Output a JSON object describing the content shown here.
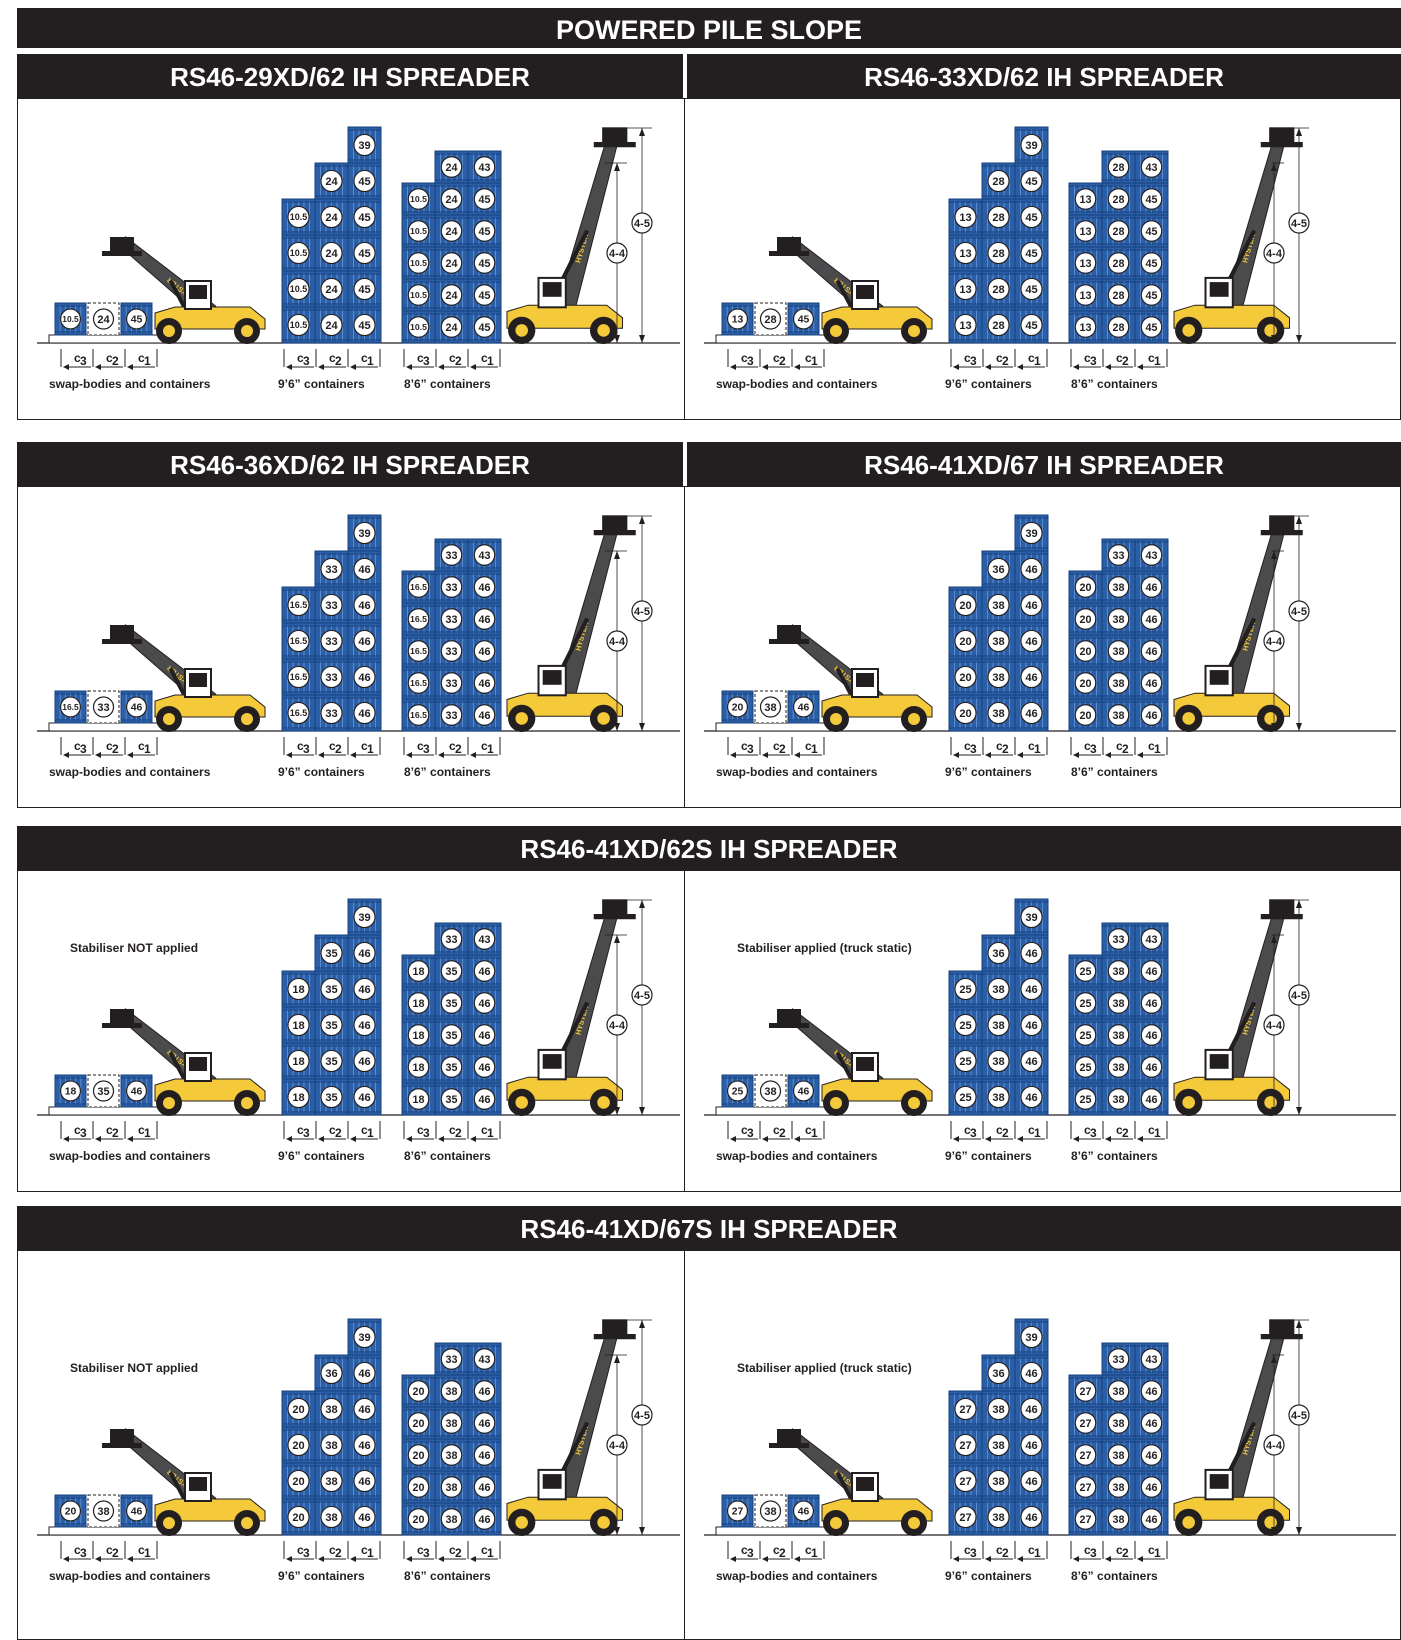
{
  "title": "POWERED PILE SLOPE",
  "colors": {
    "container": "#2a5fa8",
    "container_dark": "#16407d",
    "truck": "#f4c93a",
    "bar": "#231f20",
    "boom": "#4b4b4d"
  },
  "brand": "HYSTER",
  "sections": [
    {
      "id": "s1",
      "panels": [
        {
          "title": "RS46-29XD/62 IH SPREADER",
          "note": "",
          "left": {
            "dashed": "24",
            "a": "10.5",
            "b": "45"
          },
          "s96": {
            "c3": "10.5",
            "c2": "24",
            "c1": "45",
            "top": "39"
          },
          "s86": {
            "c3": "10.5",
            "c2": "24",
            "c1": "45",
            "top": "43"
          },
          "dims": {
            "h1": "4-5",
            "h2": "4-4"
          }
        },
        {
          "title": "RS46-33XD/62 IH SPREADER",
          "note": "",
          "left": {
            "dashed": "28",
            "a": "13",
            "b": "45"
          },
          "s96": {
            "c3": "13",
            "c2": "28",
            "c1": "45",
            "top": "39"
          },
          "s86": {
            "c3": "13",
            "c2": "28",
            "c1": "45",
            "top": "43"
          },
          "dims": {
            "h1": "4-5",
            "h2": "4-4"
          }
        }
      ]
    },
    {
      "id": "s2",
      "panels": [
        {
          "title": "RS46-36XD/62 IH SPREADER",
          "note": "",
          "left": {
            "dashed": "33",
            "a": "16.5",
            "b": "46"
          },
          "s96": {
            "c3": "16.5",
            "c2": "33",
            "c1": "46",
            "top": "39"
          },
          "s86": {
            "c3": "16.5",
            "c2": "33",
            "c1": "46",
            "top": "43"
          },
          "dims": {
            "h1": "4-5",
            "h2": "4-4"
          }
        },
        {
          "title": "RS46-41XD/67 IH SPREADER",
          "note": "",
          "left": {
            "dashed": "38",
            "a": "20",
            "b": "46"
          },
          "s96": {
            "c3": "20",
            "c2": "38",
            "c1": "46",
            "c2top": "36",
            "top": "39"
          },
          "s86": {
            "c3": "20",
            "c2": "38",
            "c1": "46",
            "c2top": "33",
            "top": "43"
          },
          "dims": {
            "h1": "4-5",
            "h2": "4-4"
          }
        }
      ]
    },
    {
      "id": "s3",
      "title": "RS46-41XD/62S IH SPREADER",
      "panels": [
        {
          "title": "",
          "note": "Stabiliser NOT applied",
          "left": {
            "dashed": "35",
            "a": "18",
            "b": "46"
          },
          "s96": {
            "c3": "18",
            "c2": "35",
            "c1": "46",
            "top": "39"
          },
          "s86": {
            "c3": "18",
            "c2": "35",
            "c1": "46",
            "c2top": "33",
            "top": "43"
          },
          "dims": {
            "h1": "4-5",
            "h2": "4-4"
          }
        },
        {
          "title": "",
          "note": "Stabiliser applied (truck static)",
          "left": {
            "dashed": "38",
            "a": "25",
            "b": "46"
          },
          "s96": {
            "c3": "25",
            "c2": "38",
            "c1": "46",
            "c2top": "36",
            "top": "39"
          },
          "s86": {
            "c3": "25",
            "c2": "38",
            "c1": "46",
            "c2top": "33",
            "top": "43"
          },
          "dims": {
            "h1": "4-5",
            "h2": "4-4"
          }
        }
      ]
    },
    {
      "id": "s4",
      "title": "RS46-41XD/67S IH SPREADER",
      "panels": [
        {
          "title": "",
          "note": "Stabiliser NOT applied",
          "left": {
            "dashed": "38",
            "a": "20",
            "b": "46"
          },
          "s96": {
            "c3": "20",
            "c2": "38",
            "c1": "46",
            "c2top": "36",
            "top": "39"
          },
          "s86": {
            "c3": "20",
            "c2": "38",
            "c1": "46",
            "c2top": "33",
            "top": "43"
          },
          "dims": {
            "h1": "4-5",
            "h2": "4-4"
          }
        },
        {
          "title": "",
          "note": "Stabiliser applied (truck static)",
          "left": {
            "dashed": "38",
            "a": "27",
            "b": "46"
          },
          "s96": {
            "c3": "27",
            "c2": "38",
            "c1": "46",
            "c2top": "36",
            "top": "39"
          },
          "s86": {
            "c3": "27",
            "c2": "38",
            "c1": "46",
            "c2top": "33",
            "top": "43"
          },
          "dims": {
            "h1": "4-5",
            "h2": "4-4"
          }
        }
      ]
    }
  ],
  "labels": {
    "swap": "swap-bodies and containers",
    "c96": "9’6” containers",
    "c86": "8’6” containers",
    "c": "c",
    "sub1": "1",
    "sub2": "2",
    "sub3": "3"
  }
}
